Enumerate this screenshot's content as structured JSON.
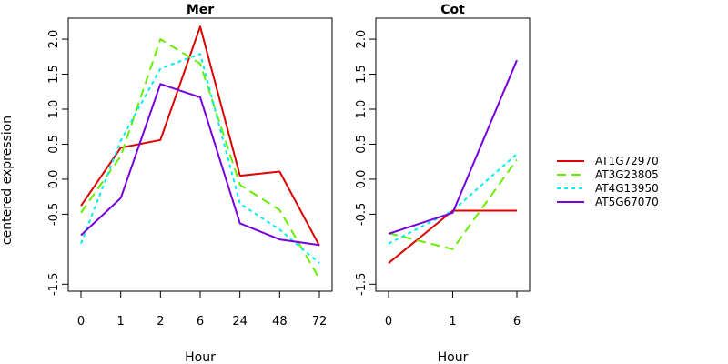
{
  "chart_data": [
    {
      "type": "line",
      "title": "Mer",
      "xlabel": "Hour",
      "categories": [
        "0",
        "1",
        "2",
        "6",
        "24",
        "48",
        "72"
      ],
      "ylim": [
        -1.6,
        2.3
      ],
      "yticks": [
        "-1.5",
        "-0.5",
        "0.0",
        "0.5",
        "1.0",
        "1.5",
        "2.0"
      ],
      "ytick_values": [
        -1.5,
        -0.5,
        0.0,
        0.5,
        1.0,
        1.5,
        2.0
      ],
      "series": [
        {
          "name": "AT1G72970",
          "values": [
            -0.38,
            0.45,
            0.56,
            2.18,
            0.05,
            0.11,
            -0.95
          ]
        },
        {
          "name": "AT3G23805",
          "values": [
            -0.48,
            0.33,
            2.0,
            1.65,
            -0.08,
            -0.44,
            -1.42
          ]
        },
        {
          "name": "AT4G13950",
          "values": [
            -0.92,
            0.55,
            1.58,
            1.79,
            -0.35,
            -0.72,
            -1.2
          ]
        },
        {
          "name": "AT5G67070",
          "values": [
            -0.8,
            -0.27,
            1.36,
            1.17,
            -0.63,
            -0.86,
            -0.94
          ]
        }
      ]
    },
    {
      "type": "line",
      "title": "Cot",
      "xlabel": "Hour",
      "categories": [
        "0",
        "1",
        "6"
      ],
      "ylim": [
        -1.6,
        2.3
      ],
      "yticks": [
        "-1.5",
        "-0.5",
        "0.0",
        "0.5",
        "1.0",
        "1.5",
        "2.0"
      ],
      "ytick_values": [
        -1.5,
        -0.5,
        0.0,
        0.5,
        1.0,
        1.5,
        2.0
      ],
      "series": [
        {
          "name": "AT1G72970",
          "values": [
            -1.2,
            -0.45,
            -0.45
          ]
        },
        {
          "name": "AT3G23805",
          "values": [
            -0.77,
            -1.0,
            0.28
          ]
        },
        {
          "name": "AT4G13950",
          "values": [
            -0.92,
            -0.45,
            0.36
          ]
        },
        {
          "name": "AT5G67070",
          "values": [
            -0.78,
            -0.48,
            1.7
          ]
        }
      ]
    }
  ],
  "ylabel": "centered expression",
  "legend": {
    "placement": "right",
    "entries": [
      {
        "label": "AT1G72970",
        "color": "#dd0000",
        "dash": "solid"
      },
      {
        "label": "AT3G23805",
        "color": "#66ee00",
        "dash": "dashed"
      },
      {
        "label": "AT4G13950",
        "color": "#00eeee",
        "dash": "dotted"
      },
      {
        "label": "AT5G67070",
        "color": "#7700dd",
        "dash": "solid"
      }
    ]
  }
}
